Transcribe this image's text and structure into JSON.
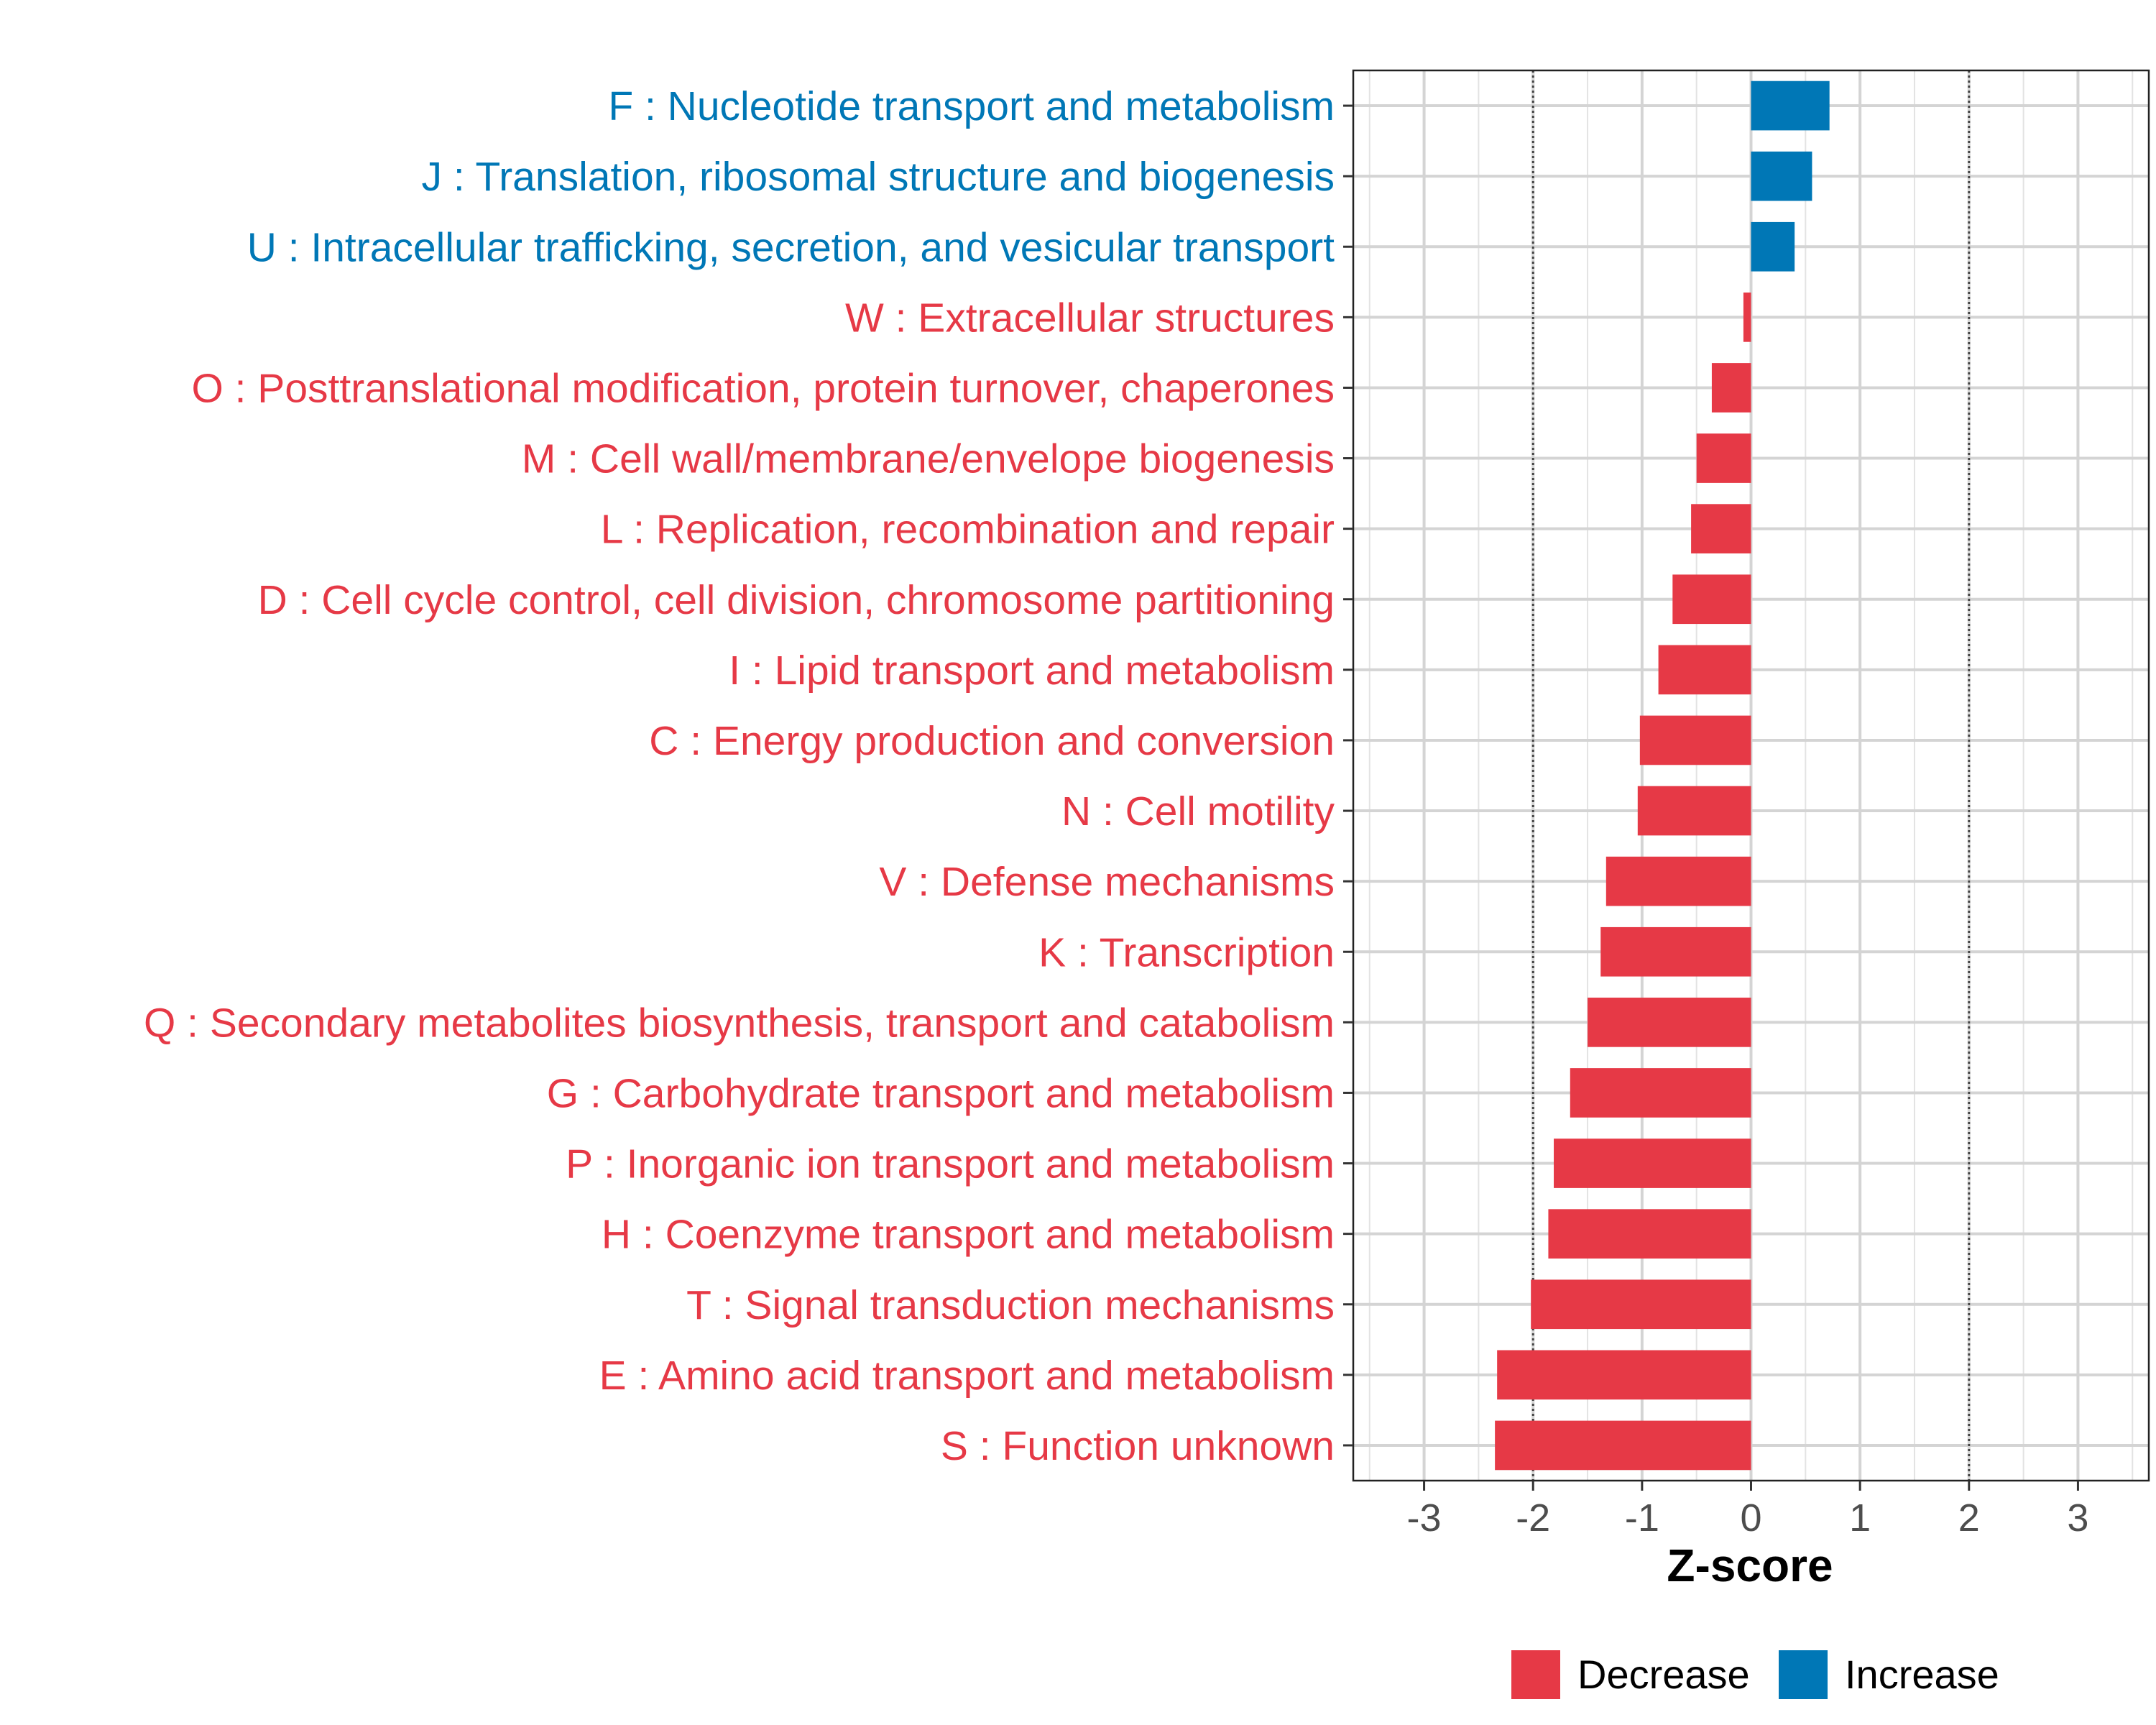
{
  "chart_data": {
    "type": "bar",
    "orientation": "horizontal",
    "title": "",
    "xlabel": "Z-score",
    "ylabel": "",
    "xlim": [
      -3.65,
      3.65
    ],
    "x_ticks": [
      -3,
      -2,
      -1,
      0,
      1,
      2,
      3
    ],
    "x_tick_labels": [
      "-3",
      "-2",
      "-1",
      "0",
      "1",
      "2",
      "3"
    ],
    "reference_lines": [
      -2,
      2
    ],
    "grid": true,
    "legend_position": "bottom",
    "colors": {
      "Decrease": "#e63946",
      "Increase": "#0077b6"
    },
    "legend": [
      {
        "label": "Decrease",
        "color": "#e63946"
      },
      {
        "label": "Increase",
        "color": "#0077b6"
      }
    ],
    "categories": [
      "F : Nucleotide transport and metabolism",
      "J : Translation, ribosomal structure and biogenesis",
      "U : Intracellular trafficking, secretion, and vesicular transport",
      "W : Extracellular structures",
      "O : Posttranslational modification, protein turnover, chaperones",
      "M : Cell wall/membrane/envelope biogenesis",
      "L : Replication, recombination and repair",
      "D : Cell cycle control, cell division, chromosome partitioning",
      "I : Lipid transport and metabolism",
      "C : Energy production and conversion",
      "N : Cell motility",
      "V : Defense mechanisms",
      "K : Transcription",
      "Q : Secondary metabolites biosynthesis, transport and catabolism",
      "G : Carbohydrate transport and metabolism",
      "P : Inorganic ion transport and metabolism",
      "H : Coenzyme transport and metabolism",
      "T : Signal transduction mechanisms",
      "E : Amino acid transport and metabolism",
      "S : Function unknown"
    ],
    "values": [
      0.72,
      0.56,
      0.4,
      -0.07,
      -0.36,
      -0.5,
      -0.55,
      -0.72,
      -0.85,
      -1.02,
      -1.04,
      -1.33,
      -1.38,
      -1.5,
      -1.66,
      -1.81,
      -1.86,
      -2.02,
      -2.33,
      -2.35
    ],
    "groups": [
      "Increase",
      "Increase",
      "Increase",
      "Decrease",
      "Decrease",
      "Decrease",
      "Decrease",
      "Decrease",
      "Decrease",
      "Decrease",
      "Decrease",
      "Decrease",
      "Decrease",
      "Decrease",
      "Decrease",
      "Decrease",
      "Decrease",
      "Decrease",
      "Decrease",
      "Decrease"
    ]
  }
}
